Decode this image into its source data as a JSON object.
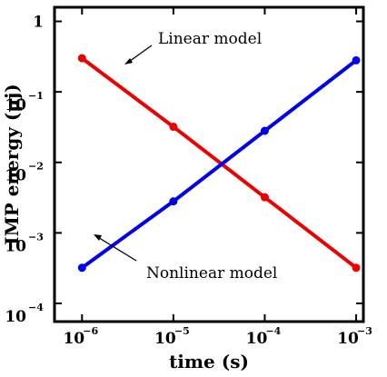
{
  "chart_data": {
    "type": "line",
    "xlabel": "time (s)",
    "ylabel": "IMP energy (μj)",
    "xscale": "log",
    "yscale": "log",
    "xlim": [
      5e-07,
      0.0012
    ],
    "ylim": [
      5.52e-05,
      1.585
    ],
    "grid": false,
    "x_ticks": [
      {
        "value": 1e-06,
        "base": "10",
        "exp": "−6"
      },
      {
        "value": 1e-05,
        "base": "10",
        "exp": "−5"
      },
      {
        "value": 0.0001,
        "base": "10",
        "exp": "−4"
      },
      {
        "value": 0.001,
        "base": "10",
        "exp": "−3"
      }
    ],
    "y_ticks": [
      {
        "value": 1,
        "base": "1",
        "exp": ""
      },
      {
        "value": 0.1,
        "base": "10",
        "exp": "−1"
      },
      {
        "value": 0.01,
        "base": "10",
        "exp": "−2"
      },
      {
        "value": 0.001,
        "base": "10",
        "exp": "−3"
      },
      {
        "value": 0.0001,
        "base": "10",
        "exp": "−4"
      }
    ],
    "series": [
      {
        "name": "Linear model",
        "color": "#ee0000",
        "x": [
          1e-06,
          1e-05,
          0.0001,
          0.001
        ],
        "y": [
          0.3,
          0.032,
          0.0032,
          0.00032
        ]
      },
      {
        "name": "Nonlinear model",
        "color": "#0000ee",
        "x": [
          1e-06,
          1e-05,
          0.0001,
          0.001
        ],
        "y": [
          0.00032,
          0.0028,
          0.028,
          0.28
        ]
      }
    ],
    "annotations": [
      {
        "text": "Linear model",
        "target_series": 0
      },
      {
        "text": "Nonlinear model",
        "target_series": 1
      }
    ]
  }
}
